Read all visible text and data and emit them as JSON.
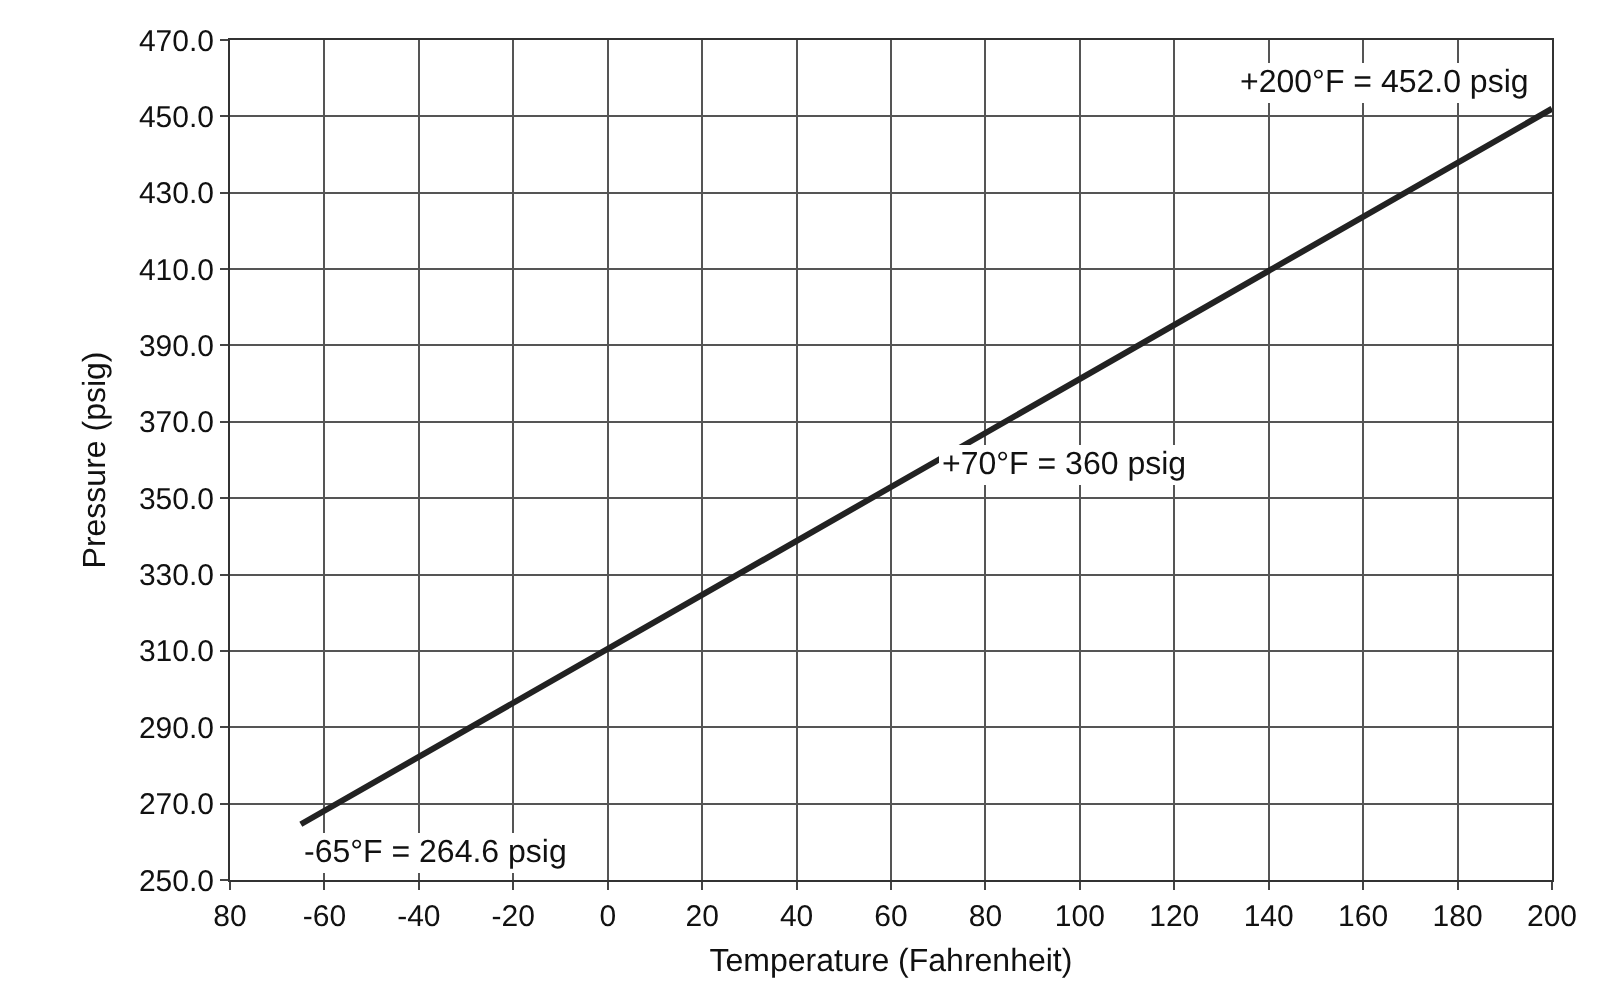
{
  "chart_data": {
    "type": "line",
    "xlabel": "Temperature (Fahrenheit)",
    "ylabel": "Pressure (psig)",
    "x": [
      -65,
      70,
      200
    ],
    "series": [
      {
        "color": "#222222",
        "values": [
          264.6,
          360,
          452.0
        ]
      }
    ],
    "xlim": [
      -80,
      200
    ],
    "xticks": [
      {
        "value": -80,
        "label": "80"
      },
      {
        "value": -60,
        "label": "-60"
      },
      {
        "value": -40,
        "label": "-40"
      },
      {
        "value": -20,
        "label": "-20"
      },
      0,
      20,
      40,
      60,
      80,
      100,
      120,
      140,
      160,
      180,
      200
    ],
    "ylim": [
      250,
      470
    ],
    "yticks": [
      {
        "value": 250,
        "label": "250.0"
      },
      {
        "value": 270,
        "label": "270.0"
      },
      {
        "value": 290,
        "label": "290.0"
      },
      {
        "value": 310,
        "label": "310.0"
      },
      {
        "value": 330,
        "label": "330.0"
      },
      {
        "value": 350,
        "label": "350.0"
      },
      {
        "value": 370,
        "label": "370.0"
      },
      {
        "value": 390,
        "label": "390.0"
      },
      {
        "value": 410,
        "label": "410.0"
      },
      {
        "value": 430,
        "label": "430.0"
      },
      {
        "value": 450,
        "label": "450.0"
      },
      {
        "value": 470,
        "label": "470.0"
      }
    ],
    "grid": true,
    "marker": "none",
    "line_style": "solid",
    "annotations": [
      {
        "text": "-65°F = 264.6 psig",
        "x": -65,
        "y": 264.6
      },
      {
        "text": "+70°F = 360 psig",
        "x": 70,
        "y": 360
      },
      {
        "text": "+200°F = 452.0 psig",
        "x": 200,
        "y": 452.0
      }
    ]
  }
}
